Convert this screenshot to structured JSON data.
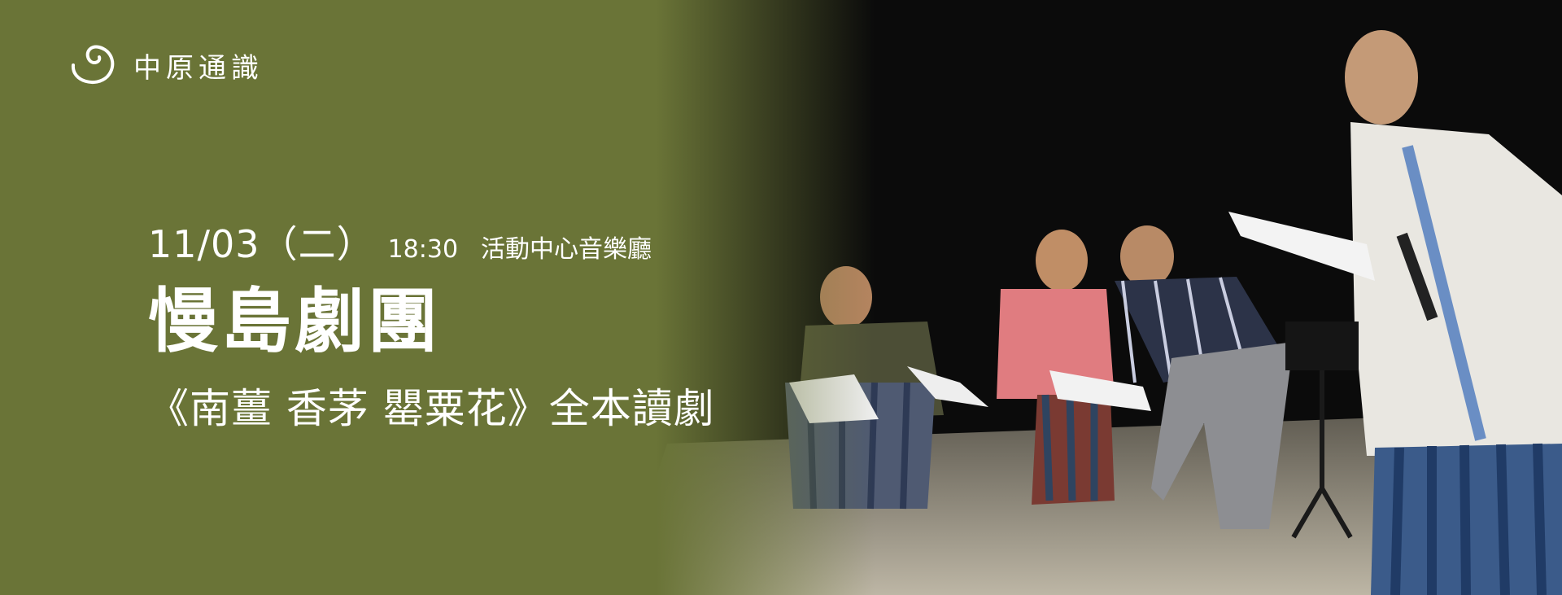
{
  "logo": {
    "text": "中原通識",
    "icon": "spiral-swirl-icon"
  },
  "event": {
    "date": "11/03（二）",
    "time": "18:30",
    "venue": "活動中心音樂廳",
    "title": "慢島劇團",
    "subtitle": "《南薑 香茅 罌粟花》全本讀劇"
  },
  "photo": {
    "description": "performers-kneeling-reading-scripts-on-stage"
  },
  "colors": {
    "background_green": "#6a7437",
    "stage_dark": "#0a0a0a",
    "text": "#ffffff"
  }
}
